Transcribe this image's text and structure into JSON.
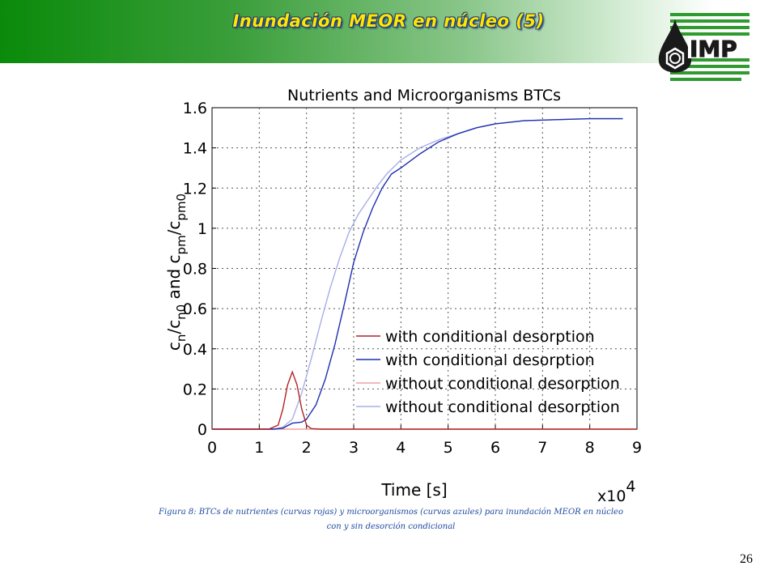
{
  "slide": {
    "title": "Inundación MEOR en núcleo (5)",
    "page_number": "26",
    "logo_text": "IMP",
    "caption_line1": "Figura 8: BTCs de nutrientes (curvas rojas) y microorganismos (curvas azules) para inundación MEOR en núcleo",
    "caption_line2": "con y sin desorción condicional",
    "colors": {
      "banner_dark": "#0a8a0a",
      "title": "#ffe600",
      "title_outline": "#1f3a7a",
      "caption": "#1f4aa0",
      "logo_green": "#2f9a2f"
    }
  },
  "chart_data": {
    "type": "line",
    "title": "Nutrients and Microorganisms BTCs",
    "xlabel": "Time [s]",
    "ylabel": "c_n/c_n0 and c_pm/c_pm0",
    "x_multiplier": "x10^4",
    "xlim": [
      0,
      9
    ],
    "ylim": [
      0,
      1.6
    ],
    "xticks": [
      "0",
      "1",
      "2",
      "3",
      "4",
      "5",
      "6",
      "7",
      "8",
      "9"
    ],
    "yticks": [
      "0",
      "0.2",
      "0.4",
      "0.6",
      "0.8",
      "1",
      "1.2",
      "1.4",
      "1.6"
    ],
    "grid": true,
    "legend_position": "bottom-right",
    "series": [
      {
        "name": "with conditional desorption",
        "color": "#b22222",
        "points": [
          [
            0,
            0
          ],
          [
            1.2,
            0
          ],
          [
            1.4,
            0.02
          ],
          [
            1.5,
            0.1
          ],
          [
            1.6,
            0.22
          ],
          [
            1.7,
            0.285
          ],
          [
            1.8,
            0.22
          ],
          [
            1.9,
            0.1
          ],
          [
            2.0,
            0.02
          ],
          [
            2.1,
            0.003
          ],
          [
            2.3,
            0
          ],
          [
            9.0,
            0
          ]
        ]
      },
      {
        "name": "with conditional desorption",
        "color": "#1f2fb0",
        "points": [
          [
            0,
            0
          ],
          [
            1.3,
            0
          ],
          [
            1.5,
            0.005
          ],
          [
            1.7,
            0.03
          ],
          [
            1.9,
            0.035
          ],
          [
            2.0,
            0.05
          ],
          [
            2.2,
            0.12
          ],
          [
            2.4,
            0.25
          ],
          [
            2.6,
            0.42
          ],
          [
            2.8,
            0.62
          ],
          [
            3.0,
            0.83
          ],
          [
            3.2,
            0.98
          ],
          [
            3.4,
            1.1
          ],
          [
            3.6,
            1.2
          ],
          [
            3.8,
            1.27
          ],
          [
            4.0,
            1.3
          ],
          [
            4.4,
            1.37
          ],
          [
            4.8,
            1.43
          ],
          [
            5.2,
            1.47
          ],
          [
            5.6,
            1.5
          ],
          [
            6.0,
            1.52
          ],
          [
            6.6,
            1.535
          ],
          [
            7.2,
            1.54
          ],
          [
            8.0,
            1.545
          ],
          [
            8.7,
            1.545
          ]
        ]
      },
      {
        "name": "without conditional desorption",
        "color": "#f2a0a0",
        "points": [
          [
            0,
            0
          ],
          [
            9.0,
            0
          ]
        ]
      },
      {
        "name": "without conditional desorption",
        "color": "#a8aee8",
        "points": [
          [
            0,
            0
          ],
          [
            1.3,
            0
          ],
          [
            1.5,
            0.01
          ],
          [
            1.7,
            0.05
          ],
          [
            1.9,
            0.18
          ],
          [
            2.1,
            0.35
          ],
          [
            2.3,
            0.53
          ],
          [
            2.5,
            0.7
          ],
          [
            2.7,
            0.85
          ],
          [
            2.9,
            0.98
          ],
          [
            3.1,
            1.07
          ],
          [
            3.3,
            1.14
          ],
          [
            3.5,
            1.21
          ],
          [
            3.7,
            1.27
          ],
          [
            4.0,
            1.34
          ],
          [
            4.4,
            1.4
          ],
          [
            4.8,
            1.44
          ],
          [
            5.2,
            1.47
          ],
          [
            5.6,
            1.5
          ],
          [
            6.0,
            1.52
          ],
          [
            6.6,
            1.535
          ],
          [
            7.2,
            1.54
          ],
          [
            8.0,
            1.545
          ],
          [
            8.7,
            1.545
          ]
        ]
      }
    ]
  }
}
